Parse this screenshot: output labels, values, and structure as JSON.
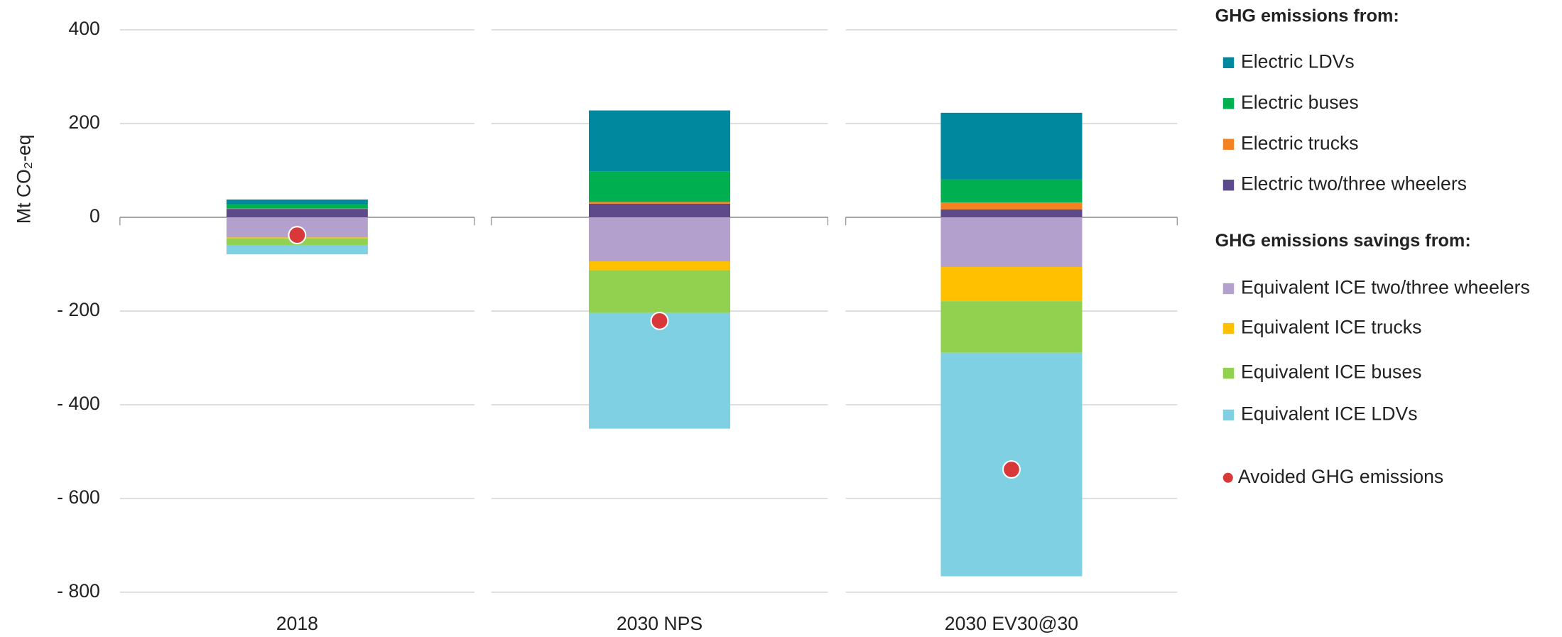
{
  "chart_data": {
    "type": "stacked-bar",
    "y_label": "Mt CO₂-eq",
    "categories": [
      "2018",
      "2030 NPS",
      "2030 EV30@30"
    ],
    "ylim": [
      -800,
      400
    ],
    "yticks": [
      {
        "value": -800,
        "label": "- 800"
      },
      {
        "value": -600,
        "label": "- 600"
      },
      {
        "value": -400,
        "label": "- 400"
      },
      {
        "value": -200,
        "label": "- 200"
      },
      0,
      200,
      400
    ],
    "grid": true,
    "legend_headings": [
      "GHG emissions from:",
      "GHG emissions savings from:"
    ],
    "series": [
      {
        "name": "Electric LDVs",
        "color": "#00889e",
        "values": [
          10,
          130,
          142
        ]
      },
      {
        "name": "Electric buses",
        "color": "#00b050",
        "values": [
          9,
          65,
          49
        ]
      },
      {
        "name": "Electric trucks",
        "color": "#f58220",
        "values": [
          1,
          4,
          15
        ]
      },
      {
        "name": "Electric two/three wheelers",
        "color": "#5c4a8a",
        "values": [
          18,
          29,
          17
        ]
      },
      {
        "name": "Equivalent ICE two/three wheelers",
        "color": "#b4a0cc",
        "values": [
          -43,
          -94,
          -106
        ]
      },
      {
        "name": "Equivalent ICE trucks",
        "color": "#ffc000",
        "values": [
          -2,
          -19,
          -73
        ]
      },
      {
        "name": "Equivalent ICE buses",
        "color": "#92d050",
        "values": [
          -14,
          -91,
          -110
        ]
      },
      {
        "name": "Equivalent ICE LDVs",
        "color": "#80d0e3",
        "values": [
          -20,
          -247,
          -477
        ]
      },
      {
        "name": "Avoided GHG emissions",
        "color": "#d9383a",
        "type": "scatter",
        "values": [
          -38,
          -221,
          -538
        ]
      }
    ]
  }
}
